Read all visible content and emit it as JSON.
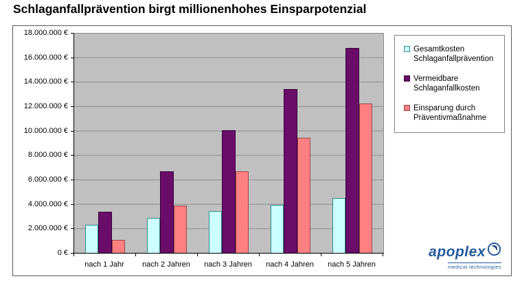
{
  "title": "Schlaganfallprävention birgt millionenhohes Einsparpotenzial",
  "chart_data": {
    "type": "bar",
    "categories": [
      "nach 1 Jahr",
      "nach 2 Jahren",
      "nach 3 Jahren",
      "nach 4 Jahren",
      "nach 5 Jahren"
    ],
    "series": [
      {
        "name": "Gesamtkosten Schlaganfallprävention",
        "values": [
          2300000,
          2850000,
          3400000,
          3950000,
          4500000
        ],
        "fill": "#CCFFFF",
        "border": "#2E8C8C"
      },
      {
        "name": "Vermeidbare Schlaganfallkosten",
        "values": [
          3350000,
          6700000,
          10050000,
          13400000,
          16750000
        ],
        "fill": "#690D69",
        "border": "#35003A"
      },
      {
        "name": "Einsparung durch Präventivmaßnahme",
        "values": [
          1050000,
          3850000,
          6650000,
          9450000,
          12250000
        ],
        "fill": "#FF8080",
        "border": "#99484D"
      }
    ],
    "y_ticks": [
      "18.000.000 €",
      "16.000.000 €",
      "14.000.000 €",
      "12.000.000 €",
      "10.000.000 €",
      "8.000.000 €",
      "6.000.000 €",
      "4.000.000 €",
      "2.000.000 €",
      "0 €"
    ],
    "ylim": [
      0,
      18000000
    ],
    "grid": true,
    "legend_position": "right",
    "plot_background": "#C0C0C0",
    "gridline_color": "#8C8C8C"
  },
  "logo": {
    "brand": "apoplex",
    "tagline": "medical technologies",
    "color": "#24599B"
  }
}
